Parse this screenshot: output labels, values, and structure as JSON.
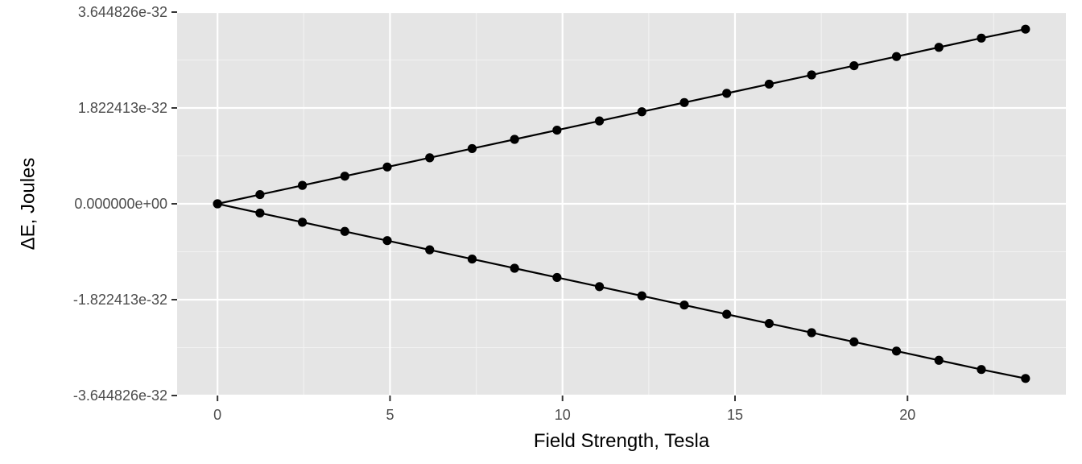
{
  "chart_data": {
    "type": "line",
    "title": "",
    "xlabel": "Field Strength, Tesla",
    "ylabel": "ΔE, Joules",
    "xlim": [
      -1.171,
      24.591
    ],
    "ylim": [
      -3.644826e-32,
      3.644826e-32
    ],
    "grid": true,
    "legend": "none",
    "x_ticks": [
      0,
      5,
      10,
      15,
      20
    ],
    "x_tick_labels": [
      "0",
      "5",
      "10",
      "15",
      "20"
    ],
    "y_ticks": [
      -3.644826e-32,
      -1.822413e-32,
      0,
      1.822413e-32,
      3.644826e-32
    ],
    "y_tick_labels": [
      "-3.644826e-32",
      "-1.822413e-32",
      "0.000000e+00",
      "1.822413e-32",
      "3.644826e-32"
    ],
    "x": [
      0,
      1.23,
      2.46,
      3.69,
      4.92,
      6.15,
      7.38,
      8.61,
      9.84,
      11.07,
      12.3,
      13.53,
      14.76,
      15.99,
      17.22,
      18.45,
      19.68,
      20.91,
      22.14,
      23.42
    ],
    "series": [
      {
        "values": [
          0,
          1.75e-33,
          3.5e-33,
          5.25e-33,
          7e-33,
          8.75e-33,
          1.05e-32,
          1.225e-32,
          1.4e-32,
          1.575e-32,
          1.75e-32,
          1.925e-32,
          2.1e-32,
          2.275e-32,
          2.45e-32,
          2.625e-32,
          2.8e-32,
          2.975e-32,
          3.15e-32,
          3.32e-32
        ]
      },
      {
        "values": [
          0,
          -1.75e-33,
          -3.5e-33,
          -5.25e-33,
          -7e-33,
          -8.75e-33,
          -1.05e-32,
          -1.225e-32,
          -1.4e-32,
          -1.575e-32,
          -1.75e-32,
          -1.925e-32,
          -2.1e-32,
          -2.275e-32,
          -2.45e-32,
          -2.625e-32,
          -2.8e-32,
          -2.975e-32,
          -3.15e-32,
          -3.32e-32
        ]
      }
    ],
    "colors": {
      "panel_background": "#e5e5e5",
      "grid_major": "#ffffff",
      "grid_minor": "#f2f2f2",
      "series": "#000000",
      "tick": "#333333"
    }
  }
}
